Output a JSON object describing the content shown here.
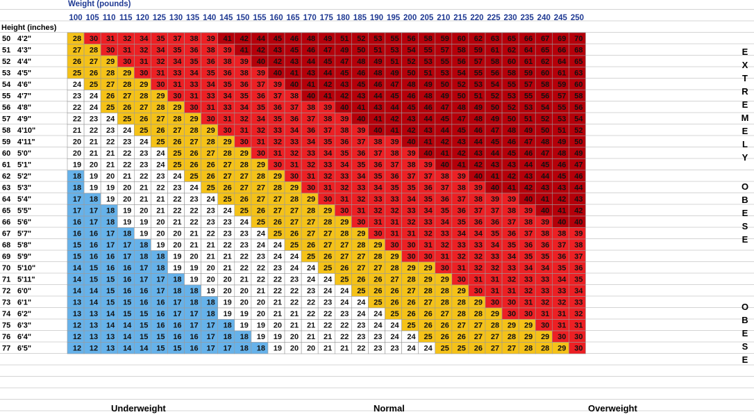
{
  "labels": {
    "weight_title": "Weight (pounds)",
    "height_title": "Height (inches)",
    "underweight": "Underweight",
    "normal": "Normal",
    "overweight": "Overweight",
    "extremely": [
      "E",
      "X",
      "T",
      "R",
      "E",
      "M",
      "E",
      "L",
      "Y"
    ],
    "obese_1": [
      "O",
      "B",
      "E",
      "S",
      "E"
    ],
    "obese_2": [
      "O",
      "B",
      "E",
      "S",
      "E"
    ]
  },
  "colors": {
    "underweight": "#66b2ea",
    "normal": "#ffffff",
    "overweight": "#f5c218",
    "obese": "#ec2024",
    "extremely_obese": "#b5000a",
    "header_text": "#1f3a93",
    "grid": "#9a9a9a"
  },
  "chart_data": {
    "type": "heatmap",
    "title": "",
    "xlabel": "Weight (pounds)",
    "ylabel": "Height (inches)",
    "weights": [
      100,
      105,
      110,
      115,
      120,
      125,
      130,
      135,
      140,
      145,
      150,
      155,
      160,
      165,
      170,
      175,
      180,
      185,
      190,
      195,
      200,
      205,
      210,
      215,
      220,
      225,
      230,
      235,
      240,
      245,
      250
    ],
    "heights_in": [
      50,
      51,
      52,
      53,
      54,
      55,
      56,
      57,
      58,
      59,
      60,
      61,
      62,
      63,
      64,
      65,
      66,
      67,
      68,
      69,
      70,
      71,
      72,
      73,
      74,
      75,
      76,
      77
    ],
    "heights_ft": [
      "4'2\"",
      "4'3\"",
      "4'4\"",
      "4'5\"",
      "4'6\"",
      "4'7\"",
      "4'8\"",
      "4'9\"",
      "4'10\"",
      "4'11\"",
      "5'0\"",
      "5'1\"",
      "5'2\"",
      "5'3\"",
      "5'4\"",
      "5'5\"",
      "5'6\"",
      "5'7\"",
      "5'8\"",
      "5'9\"",
      "5'10\"",
      "5'11\"",
      "6'0\"",
      "6'1\"",
      "6'2\"",
      "6'3\"",
      "6'4\"",
      "6'5\""
    ],
    "bmi": [
      [
        28,
        30,
        31,
        32,
        34,
        35,
        37,
        38,
        39,
        41,
        42,
        44,
        45,
        46,
        48,
        49,
        51,
        52,
        53,
        55,
        56,
        58,
        59,
        60,
        62,
        63,
        65,
        66,
        67,
        69,
        70
      ],
      [
        27,
        28,
        30,
        31,
        32,
        34,
        35,
        36,
        38,
        39,
        41,
        42,
        43,
        45,
        46,
        47,
        49,
        50,
        51,
        53,
        54,
        55,
        57,
        58,
        59,
        61,
        62,
        64,
        65,
        66,
        68
      ],
      [
        26,
        27,
        29,
        30,
        31,
        32,
        34,
        35,
        36,
        38,
        39,
        40,
        42,
        43,
        44,
        45,
        47,
        48,
        49,
        51,
        52,
        53,
        55,
        56,
        57,
        58,
        60,
        61,
        62,
        64,
        65
      ],
      [
        25,
        26,
        28,
        29,
        30,
        31,
        33,
        34,
        35,
        36,
        38,
        39,
        40,
        41,
        43,
        44,
        45,
        46,
        48,
        49,
        50,
        51,
        53,
        54,
        55,
        56,
        58,
        59,
        60,
        61,
        63
      ],
      [
        24,
        25,
        27,
        28,
        29,
        30,
        31,
        33,
        34,
        35,
        36,
        37,
        39,
        40,
        41,
        42,
        43,
        45,
        46,
        47,
        48,
        49,
        50,
        52,
        53,
        54,
        55,
        57,
        58,
        59,
        60
      ],
      [
        23,
        24,
        26,
        27,
        28,
        29,
        30,
        31,
        33,
        34,
        35,
        36,
        37,
        38,
        40,
        41,
        42,
        43,
        44,
        45,
        46,
        48,
        49,
        50,
        51,
        52,
        53,
        55,
        56,
        57,
        58
      ],
      [
        22,
        24,
        25,
        26,
        27,
        28,
        29,
        30,
        31,
        33,
        34,
        35,
        36,
        37,
        38,
        39,
        40,
        41,
        43,
        44,
        45,
        46,
        47,
        48,
        49,
        50,
        52,
        53,
        54,
        55,
        56
      ],
      [
        22,
        23,
        24,
        25,
        26,
        27,
        28,
        29,
        30,
        31,
        32,
        34,
        35,
        36,
        37,
        38,
        39,
        40,
        41,
        42,
        43,
        44,
        45,
        47,
        48,
        49,
        50,
        51,
        52,
        53,
        54
      ],
      [
        21,
        22,
        23,
        24,
        25,
        26,
        27,
        28,
        29,
        30,
        31,
        32,
        33,
        34,
        36,
        37,
        38,
        39,
        40,
        41,
        42,
        43,
        44,
        45,
        46,
        47,
        48,
        49,
        50,
        51,
        52
      ],
      [
        20,
        21,
        22,
        23,
        24,
        25,
        26,
        27,
        28,
        29,
        30,
        31,
        32,
        33,
        34,
        35,
        36,
        37,
        38,
        39,
        40,
        41,
        42,
        43,
        44,
        45,
        46,
        47,
        48,
        49,
        50
      ],
      [
        20,
        21,
        21,
        22,
        23,
        24,
        25,
        26,
        27,
        28,
        29,
        30,
        31,
        32,
        33,
        34,
        35,
        36,
        37,
        38,
        39,
        40,
        41,
        42,
        43,
        44,
        45,
        46,
        47,
        48,
        49
      ],
      [
        19,
        20,
        21,
        22,
        23,
        24,
        25,
        26,
        26,
        27,
        28,
        29,
        30,
        31,
        32,
        33,
        34,
        35,
        36,
        37,
        38,
        39,
        40,
        41,
        42,
        43,
        43,
        44,
        45,
        46,
        47
      ],
      [
        18,
        19,
        20,
        21,
        22,
        23,
        24,
        25,
        26,
        27,
        27,
        28,
        29,
        30,
        31,
        32,
        33,
        34,
        35,
        36,
        37,
        37,
        38,
        39,
        40,
        41,
        42,
        43,
        44,
        45,
        46
      ],
      [
        18,
        19,
        19,
        20,
        21,
        22,
        23,
        24,
        25,
        26,
        27,
        27,
        28,
        29,
        30,
        31,
        32,
        33,
        34,
        35,
        35,
        36,
        37,
        38,
        39,
        40,
        41,
        42,
        43,
        43,
        44
      ],
      [
        17,
        18,
        19,
        20,
        21,
        21,
        22,
        23,
        24,
        25,
        26,
        27,
        27,
        28,
        29,
        30,
        31,
        32,
        33,
        33,
        34,
        35,
        36,
        37,
        38,
        39,
        39,
        40,
        41,
        42,
        43
      ],
      [
        17,
        17,
        18,
        19,
        20,
        21,
        22,
        22,
        23,
        24,
        25,
        26,
        27,
        27,
        28,
        29,
        30,
        31,
        32,
        32,
        33,
        34,
        35,
        36,
        37,
        37,
        38,
        39,
        40,
        41,
        42
      ],
      [
        16,
        17,
        18,
        19,
        19,
        20,
        21,
        22,
        23,
        23,
        24,
        25,
        26,
        27,
        27,
        28,
        29,
        30,
        31,
        31,
        32,
        33,
        34,
        35,
        36,
        36,
        37,
        38,
        39,
        40,
        40
      ],
      [
        16,
        16,
        17,
        18,
        19,
        20,
        20,
        21,
        22,
        23,
        23,
        24,
        25,
        26,
        27,
        27,
        28,
        29,
        30,
        31,
        31,
        32,
        33,
        34,
        34,
        35,
        36,
        37,
        38,
        38,
        39
      ],
      [
        15,
        16,
        17,
        17,
        18,
        19,
        20,
        21,
        21,
        22,
        23,
        24,
        24,
        25,
        26,
        27,
        27,
        28,
        29,
        30,
        30,
        31,
        32,
        33,
        33,
        34,
        35,
        36,
        36,
        37,
        38
      ],
      [
        15,
        16,
        16,
        17,
        18,
        18,
        19,
        20,
        21,
        21,
        22,
        23,
        24,
        24,
        25,
        26,
        27,
        27,
        28,
        29,
        30,
        30,
        31,
        32,
        32,
        33,
        34,
        35,
        35,
        36,
        37
      ],
      [
        14,
        15,
        16,
        16,
        17,
        18,
        19,
        19,
        20,
        21,
        22,
        22,
        23,
        24,
        24,
        25,
        26,
        27,
        27,
        28,
        29,
        29,
        30,
        31,
        32,
        32,
        33,
        34,
        34,
        35,
        36
      ],
      [
        14,
        15,
        15,
        16,
        17,
        17,
        18,
        19,
        20,
        20,
        21,
        22,
        22,
        23,
        24,
        24,
        25,
        26,
        26,
        27,
        28,
        29,
        29,
        30,
        31,
        31,
        32,
        33,
        33,
        34,
        35
      ],
      [
        14,
        14,
        15,
        16,
        16,
        17,
        18,
        18,
        19,
        20,
        20,
        21,
        22,
        22,
        23,
        24,
        24,
        25,
        26,
        26,
        27,
        28,
        28,
        29,
        30,
        31,
        31,
        32,
        33,
        33,
        34
      ],
      [
        13,
        14,
        15,
        15,
        16,
        16,
        17,
        18,
        18,
        19,
        20,
        20,
        21,
        22,
        22,
        23,
        24,
        24,
        25,
        26,
        26,
        27,
        28,
        28,
        29,
        30,
        30,
        31,
        32,
        32,
        33
      ],
      [
        13,
        13,
        14,
        15,
        15,
        16,
        17,
        17,
        18,
        19,
        19,
        20,
        21,
        21,
        22,
        22,
        23,
        24,
        24,
        25,
        26,
        26,
        27,
        28,
        28,
        29,
        30,
        30,
        31,
        31,
        32
      ],
      [
        12,
        13,
        14,
        14,
        15,
        16,
        16,
        17,
        17,
        18,
        19,
        19,
        20,
        21,
        21,
        22,
        22,
        23,
        24,
        24,
        25,
        26,
        26,
        27,
        27,
        28,
        29,
        29,
        30,
        31,
        31
      ],
      [
        12,
        13,
        13,
        14,
        15,
        15,
        16,
        16,
        17,
        18,
        18,
        19,
        19,
        20,
        21,
        21,
        22,
        23,
        23,
        24,
        24,
        25,
        26,
        26,
        27,
        27,
        28,
        29,
        29,
        30,
        30
      ],
      [
        12,
        12,
        13,
        14,
        14,
        15,
        15,
        16,
        17,
        17,
        18,
        18,
        19,
        20,
        20,
        21,
        21,
        22,
        23,
        23,
        24,
        24,
        25,
        25,
        26,
        27,
        27,
        28,
        28,
        29,
        30
      ]
    ],
    "categories": [
      {
        "name": "Underweight",
        "range": [
          0,
          18.5
        ]
      },
      {
        "name": "Normal",
        "range": [
          18.5,
          25
        ]
      },
      {
        "name": "Overweight",
        "range": [
          25,
          30
        ]
      },
      {
        "name": "Obese",
        "range": [
          30,
          40
        ]
      },
      {
        "name": "Extremely Obese",
        "range": [
          40,
          100
        ]
      }
    ]
  }
}
